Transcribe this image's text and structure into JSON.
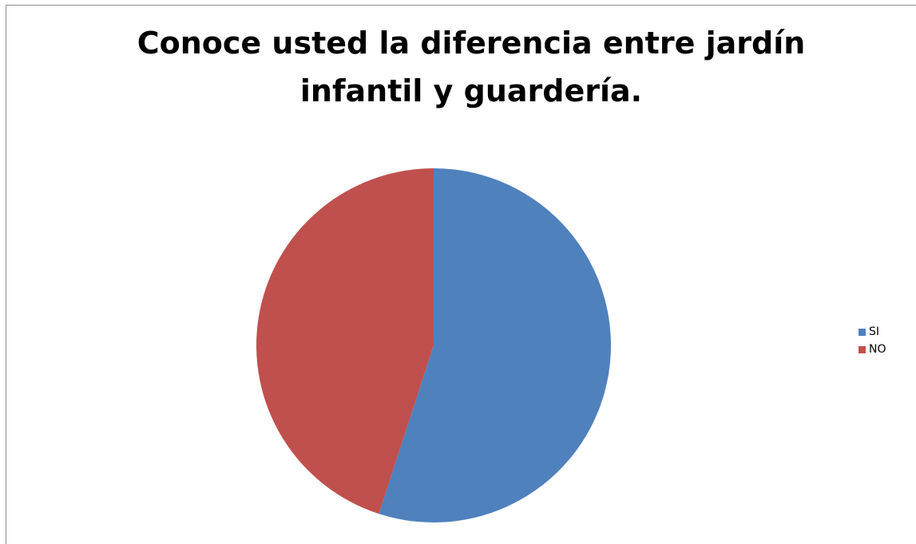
{
  "chart_data": {
    "type": "pie",
    "title": "Conoce usted la diferencia entre jardín infantil y guardería.",
    "categories": [
      "SI",
      "NO"
    ],
    "values": [
      55,
      45
    ],
    "colors": [
      "#4F81BD",
      "#C0504D"
    ],
    "legend_position": "right"
  }
}
